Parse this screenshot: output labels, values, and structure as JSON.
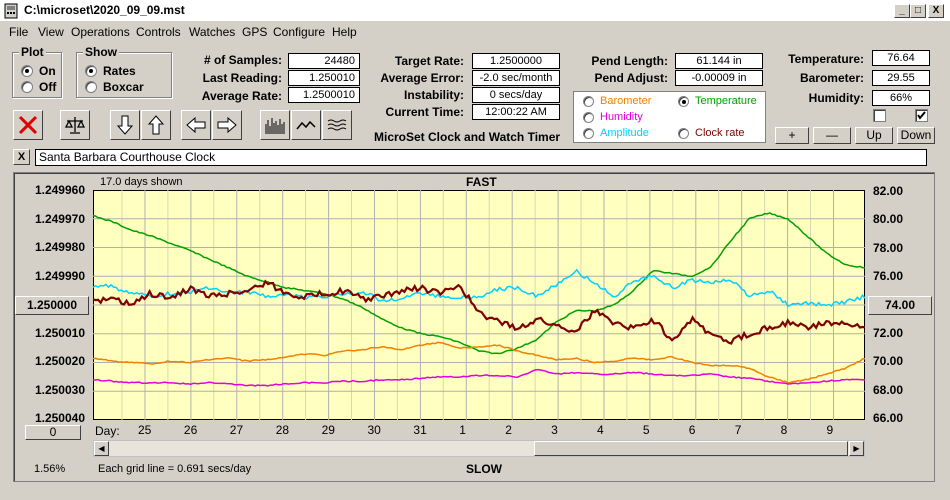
{
  "window": {
    "title": "C:\\microset\\2020_09_09.mst",
    "minimize": "_",
    "maximize": "□",
    "close": "X"
  },
  "menu": [
    "File",
    "View",
    "Operations",
    "Controls",
    "Watches",
    "GPS",
    "Configure",
    "Help"
  ],
  "plot_group": {
    "title": "Plot",
    "options": [
      "On",
      "Off"
    ],
    "selected": "On"
  },
  "show_group": {
    "title": "Show",
    "options": [
      "Rates",
      "Boxcar"
    ],
    "selected": "Rates"
  },
  "stats": {
    "samples_label": "# of Samples:",
    "samples": "24480",
    "last_reading_label": "Last Reading:",
    "last_reading": "1.250010",
    "average_rate_label": "Average Rate:",
    "average_rate": "1.2500010",
    "target_rate_label": "Target Rate:",
    "target_rate": "1.2500000",
    "average_error_label": "Average Error:",
    "average_error": "-2.0 sec/month",
    "instability_label": "Instability:",
    "instability": "0 secs/day",
    "current_time_label": "Current Time:",
    "current_time": "12:00:22 AM",
    "pend_length_label": "Pend Length:",
    "pend_length": "61.144 in",
    "pend_adjust_label": "Pend Adjust:",
    "pend_adjust": "-0.00009 in",
    "temperature_label": "Temperature:",
    "temperature": "76.64",
    "barometer_label": "Barometer:",
    "barometer": "29.55",
    "humidity_label": "Humidity:",
    "humidity": "66%"
  },
  "app_name": "MicroSet Clock and Watch Timer",
  "sensor_options": [
    {
      "label": "Barometer",
      "color": "#f08000",
      "selected": false
    },
    {
      "label": "Temperature",
      "color": "#00a000",
      "selected": true
    },
    {
      "label": "Humidity",
      "color": "#e000e0",
      "selected": false
    },
    {
      "label": "Amplitude",
      "color": "#00d0ff",
      "selected": false
    },
    {
      "label": "Clock rate",
      "color": "#800000",
      "selected": false
    }
  ],
  "scale_buttons": {
    "plus": "+",
    "minus": "—",
    "up": "Up",
    "down": "Down"
  },
  "checkboxes": [
    {
      "checked": false
    },
    {
      "checked": true
    }
  ],
  "clock_name": "Santa Barbara Courthouse Clock",
  "close_x": "X",
  "chart_header": {
    "days_shown": "17.0 days shown",
    "top_label": "FAST",
    "bottom_label": "SLOW",
    "grid_note": "Each grid line = 0.691 secs/day",
    "percent": "1.56%",
    "day_label": "Day:",
    "left_button": "0"
  },
  "chart_data": {
    "type": "line",
    "x_day_labels": [
      "25",
      "26",
      "27",
      "28",
      "29",
      "30",
      "31",
      "1",
      "2",
      "3",
      "4",
      "5",
      "6",
      "7",
      "8",
      "9"
    ],
    "y_left_ticks": [
      "1.249960",
      "1.249970",
      "1.249980",
      "1.249990",
      "1.250000",
      "1.250010",
      "1.250020",
      "1.250030",
      "1.250040"
    ],
    "y_left_selected": "1.250000",
    "y_right_ticks": [
      "82.00",
      "80.00",
      "78.00",
      "76.00",
      "74.00",
      "72.00",
      "70.00",
      "68.00",
      "66.00"
    ],
    "y_right_selected": "74.00",
    "background": "#ffffc0",
    "series": [
      {
        "name": "Temperature",
        "color": "#00a000",
        "values": [
          80.2,
          79.8,
          79.2,
          78.8,
          78.3,
          77.8,
          77.2,
          76.6,
          76.0,
          75.6,
          75.2,
          75.0,
          74.8,
          74.4,
          73.8,
          73.0,
          72.4,
          72.0,
          71.8,
          71.4,
          70.8,
          70.6,
          71.0,
          71.6,
          72.8,
          73.6,
          73.6,
          74.0,
          75.0,
          76.4,
          76.2,
          76.0,
          76.6,
          78.4,
          80.0,
          80.4,
          80.0,
          78.8,
          77.6,
          76.8,
          76.6
        ]
      },
      {
        "name": "Amplitude",
        "color": "#00d0ff",
        "values": [
          75.3,
          75.3,
          74.8,
          74.6,
          74.8,
          74.9,
          75.2,
          74.8,
          74.9,
          74.6,
          74.8,
          74.5,
          74.6,
          74.7,
          74.9,
          74.3,
          74.5,
          74.8,
          74.6,
          74.5,
          74.6,
          75.1,
          75.2,
          74.6,
          75.4,
          76.4,
          75.5,
          74.6,
          75.6,
          76.1,
          75.2,
          75.7,
          75.6,
          75.8,
          74.6,
          75.0,
          74.0,
          74.1,
          74.0,
          74.2,
          74.6
        ]
      },
      {
        "name": "Clock rate",
        "color": "#800000",
        "values": [
          74.2,
          74.4,
          74.0,
          74.8,
          74.4,
          75.2,
          74.6,
          74.8,
          75.0,
          75.6,
          74.8,
          74.6,
          74.8,
          75.0,
          74.4,
          74.6,
          75.0,
          75.2,
          74.8,
          75.4,
          73.4,
          72.8,
          72.4,
          73.0,
          72.6,
          72.2,
          73.6,
          72.8,
          72.4,
          73.0,
          71.6,
          73.0,
          72.0,
          71.4,
          72.0,
          72.4,
          72.8,
          72.4,
          72.8,
          72.6,
          72.4
        ]
      },
      {
        "name": "Barometer",
        "color": "#f08000",
        "values": [
          70.3,
          70.1,
          70.0,
          69.9,
          70.1,
          70.0,
          70.2,
          70.3,
          70.1,
          70.2,
          70.4,
          70.6,
          70.5,
          70.8,
          70.9,
          71.1,
          70.9,
          71.2,
          71.4,
          71.0,
          71.1,
          71.2,
          70.8,
          70.5,
          70.2,
          70.3,
          70.0,
          70.1,
          70.3,
          70.2,
          70.4,
          70.0,
          69.8,
          69.8,
          69.6,
          69.0,
          68.6,
          68.8,
          69.2,
          69.6,
          70.3
        ]
      },
      {
        "name": "Humidity",
        "color": "#e000e0",
        "values": [
          68.8,
          68.7,
          68.6,
          68.6,
          68.6,
          68.5,
          68.6,
          68.5,
          68.4,
          68.4,
          68.5,
          68.6,
          68.6,
          68.7,
          68.7,
          68.8,
          68.8,
          68.9,
          69.0,
          69.0,
          69.1,
          69.1,
          69.0,
          69.5,
          69.2,
          69.3,
          69.2,
          69.2,
          69.3,
          69.2,
          69.1,
          69.1,
          69.2,
          69.0,
          68.9,
          68.7,
          68.5,
          68.6,
          68.7,
          68.8,
          68.8
        ]
      }
    ]
  }
}
